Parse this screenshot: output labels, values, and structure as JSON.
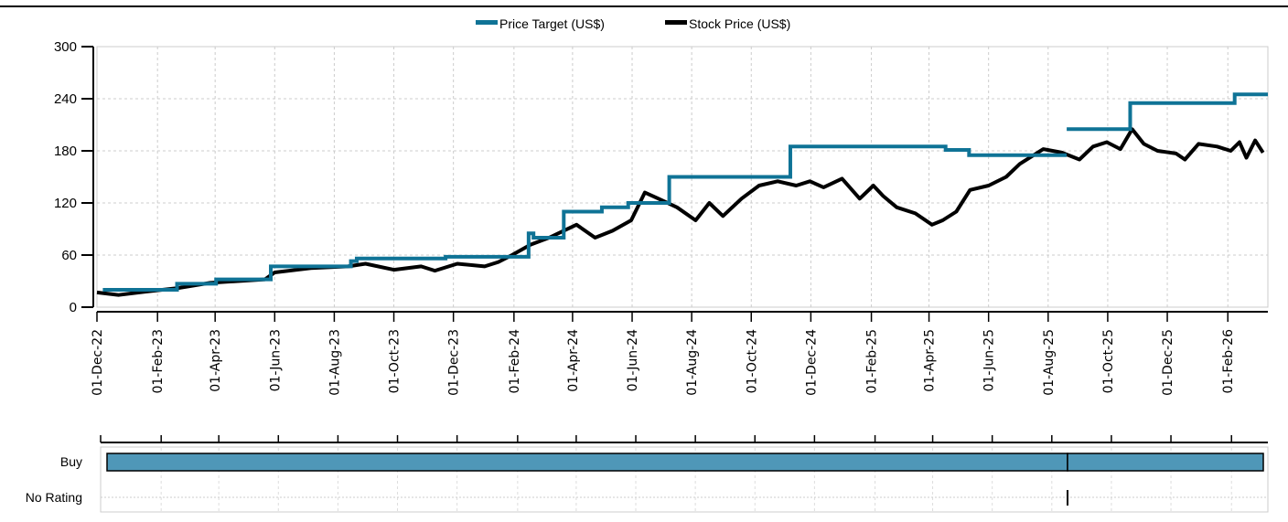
{
  "chart_data": {
    "type": "line",
    "legend": {
      "position": "top-center",
      "items": [
        {
          "name": "Price Target (US$)",
          "color": "#0f7396"
        },
        {
          "name": "Stock Price (US$)",
          "color": "#000000"
        }
      ]
    },
    "x_unit": "days since 01-Dec-22",
    "xlim": [
      0,
      1199
    ],
    "ylim": [
      0,
      300
    ],
    "y_ticks": [
      0,
      60,
      120,
      180,
      240,
      300
    ],
    "x_ticks": [
      {
        "label": "01-Dec-22",
        "day": 0
      },
      {
        "label": "01-Feb-23",
        "day": 62
      },
      {
        "label": "01-Apr-23",
        "day": 121
      },
      {
        "label": "01-Jun-23",
        "day": 182
      },
      {
        "label": "01-Aug-23",
        "day": 243
      },
      {
        "label": "01-Oct-23",
        "day": 304
      },
      {
        "label": "01-Dec-23",
        "day": 365
      },
      {
        "label": "01-Feb-24",
        "day": 427
      },
      {
        "label": "01-Apr-24",
        "day": 487
      },
      {
        "label": "01-Jun-24",
        "day": 548
      },
      {
        "label": "01-Aug-24",
        "day": 609
      },
      {
        "label": "01-Oct-24",
        "day": 670
      },
      {
        "label": "01-Dec-24",
        "day": 731
      },
      {
        "label": "01-Feb-25",
        "day": 793
      },
      {
        "label": "01-Apr-25",
        "day": 852
      },
      {
        "label": "01-Jun-25",
        "day": 913
      },
      {
        "label": "01-Aug-25",
        "day": 974
      },
      {
        "label": "01-Oct-25",
        "day": 1035
      },
      {
        "label": "01-Dec-25",
        "day": 1096
      },
      {
        "label": "01-Feb-26",
        "day": 1158
      }
    ],
    "grid": true,
    "series": [
      {
        "name": "Price Target (US$)",
        "kind": "step",
        "segments": [
          [
            [
              6,
              20
            ],
            [
              82,
              27
            ],
            [
              122,
              32
            ],
            [
              178,
              47
            ],
            [
              260,
              53
            ],
            [
              266,
              56
            ],
            [
              357,
              58
            ],
            [
              442,
              85
            ],
            [
              447,
              80
            ],
            [
              478,
              110
            ],
            [
              517,
              115
            ],
            [
              544,
              120
            ],
            [
              586,
              150
            ],
            [
              710,
              185
            ],
            [
              869,
              181
            ],
            [
              893,
              175
            ],
            [
              993,
              175
            ]
          ],
          [
            [
              993,
              205
            ],
            [
              1058,
              235
            ],
            [
              1165,
              245
            ],
            [
              1199,
              245
            ]
          ]
        ]
      },
      {
        "name": "Stock Price (US$)",
        "kind": "line",
        "points": [
          [
            0,
            17
          ],
          [
            22,
            14
          ],
          [
            51,
            18
          ],
          [
            83,
            22
          ],
          [
            116,
            28
          ],
          [
            172,
            32
          ],
          [
            182,
            40
          ],
          [
            219,
            45
          ],
          [
            257,
            47
          ],
          [
            275,
            50
          ],
          [
            304,
            43
          ],
          [
            332,
            47
          ],
          [
            346,
            42
          ],
          [
            369,
            50
          ],
          [
            397,
            47
          ],
          [
            411,
            52
          ],
          [
            425,
            60
          ],
          [
            444,
            72
          ],
          [
            463,
            80
          ],
          [
            491,
            95
          ],
          [
            510,
            80
          ],
          [
            528,
            88
          ],
          [
            547,
            100
          ],
          [
            561,
            132
          ],
          [
            575,
            125
          ],
          [
            594,
            115
          ],
          [
            613,
            100
          ],
          [
            627,
            120
          ],
          [
            641,
            105
          ],
          [
            660,
            125
          ],
          [
            678,
            140
          ],
          [
            697,
            145
          ],
          [
            716,
            140
          ],
          [
            730,
            145
          ],
          [
            744,
            138
          ],
          [
            763,
            148
          ],
          [
            781,
            125
          ],
          [
            795,
            140
          ],
          [
            805,
            128
          ],
          [
            819,
            115
          ],
          [
            838,
            108
          ],
          [
            855,
            95
          ],
          [
            866,
            100
          ],
          [
            880,
            110
          ],
          [
            894,
            135
          ],
          [
            913,
            140
          ],
          [
            931,
            150
          ],
          [
            945,
            165
          ],
          [
            969,
            182
          ],
          [
            988,
            178
          ],
          [
            1006,
            170
          ],
          [
            1020,
            185
          ],
          [
            1034,
            190
          ],
          [
            1048,
            182
          ],
          [
            1060,
            205
          ],
          [
            1072,
            188
          ],
          [
            1086,
            180
          ],
          [
            1105,
            177
          ],
          [
            1114,
            170
          ],
          [
            1128,
            188
          ],
          [
            1147,
            185
          ],
          [
            1161,
            180
          ],
          [
            1170,
            190
          ],
          [
            1177,
            172
          ],
          [
            1186,
            192
          ],
          [
            1194,
            178
          ]
        ]
      }
    ],
    "rating_panel": {
      "categories": [
        "Buy",
        "No Rating"
      ],
      "bar_color": "#4f97b8",
      "periods": [
        {
          "rating": "Buy",
          "start": 0,
          "end": 996
        },
        {
          "rating": "Buy",
          "start": 996,
          "end": 1199
        }
      ],
      "no_rating_marker_day": 996
    }
  }
}
